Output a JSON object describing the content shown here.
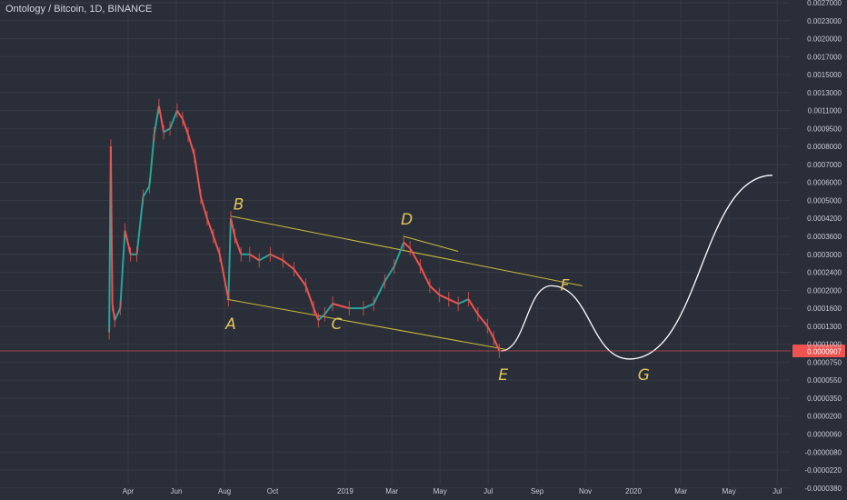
{
  "symbol": {
    "label": "Ontology / Bitcoin, 1D, BINANCE"
  },
  "colors": {
    "background": "#2a2e39",
    "grid": "#363a45",
    "text": "#d1d4dc",
    "axis_text": "#c8ccd6",
    "candle_up": "#26a69a",
    "candle_down": "#ef5350",
    "channel_line": "#c9bd3a",
    "wave_label": "#e3c55b",
    "projection": "#ffffff",
    "current_price": "#ef5350"
  },
  "chart_data": {
    "type": "candlestick",
    "title": "Ontology / Bitcoin, 1D, BINANCE",
    "y_scale": "log (shifted)",
    "grid": true,
    "x_ticks": [
      "Apr",
      "Jun",
      "Aug",
      "Oct",
      "2019",
      "Mar",
      "May",
      "Jul",
      "Sep",
      "Nov",
      "2020",
      "Mar",
      "May",
      "Jul"
    ],
    "y_ticks": [
      "0.0027000",
      "0.0023000",
      "0.0020000",
      "0.0017000",
      "0.0015000",
      "0.0013000",
      "0.0011000",
      "0.0009500",
      "0.0008000",
      "0.0007000",
      "0.0006000",
      "0.0005000",
      "0.0004200",
      "0.0003600",
      "0.0003000",
      "0.0002400",
      "0.0002000",
      "0.0001600",
      "0.0001300",
      "0.0001000",
      "0.0000750",
      "0.0000550",
      "0.0000350",
      "0.0000200",
      "0.0000060",
      "-0.0000080",
      "-0.0000220",
      "-0.0000380"
    ],
    "current_price": "0.0000907",
    "price_path": [
      {
        "date": "2018-03-08",
        "price": 0.00012
      },
      {
        "date": "2018-03-10",
        "price": 0.0008
      },
      {
        "date": "2018-03-12",
        "price": 0.00017
      },
      {
        "date": "2018-03-15",
        "price": 0.00014
      },
      {
        "date": "2018-03-22",
        "price": 0.00016
      },
      {
        "date": "2018-03-28",
        "price": 0.00038
      },
      {
        "date": "2018-04-04",
        "price": 0.0003
      },
      {
        "date": "2018-04-12",
        "price": 0.0003
      },
      {
        "date": "2018-04-20",
        "price": 0.00052
      },
      {
        "date": "2018-04-28",
        "price": 0.00058
      },
      {
        "date": "2018-05-04",
        "price": 0.0009
      },
      {
        "date": "2018-05-10",
        "price": 0.00115
      },
      {
        "date": "2018-05-16",
        "price": 0.00092
      },
      {
        "date": "2018-05-24",
        "price": 0.00095
      },
      {
        "date": "2018-06-02",
        "price": 0.0011
      },
      {
        "date": "2018-06-09",
        "price": 0.00103
      },
      {
        "date": "2018-06-16",
        "price": 0.0009
      },
      {
        "date": "2018-06-24",
        "price": 0.00075
      },
      {
        "date": "2018-07-02",
        "price": 0.00052
      },
      {
        "date": "2018-07-10",
        "price": 0.00042
      },
      {
        "date": "2018-07-18",
        "price": 0.00036
      },
      {
        "date": "2018-07-26",
        "price": 0.0003
      },
      {
        "date": "2018-08-06",
        "price": 0.00018
      },
      {
        "date": "2018-08-09",
        "price": 0.00042
      },
      {
        "date": "2018-08-14",
        "price": 0.00036
      },
      {
        "date": "2018-08-22",
        "price": 0.0003
      },
      {
        "date": "2018-09-02",
        "price": 0.0003
      },
      {
        "date": "2018-09-14",
        "price": 0.00028
      },
      {
        "date": "2018-09-28",
        "price": 0.0003
      },
      {
        "date": "2018-10-14",
        "price": 0.00028
      },
      {
        "date": "2018-10-28",
        "price": 0.00025
      },
      {
        "date": "2018-11-12",
        "price": 0.00021
      },
      {
        "date": "2018-11-22",
        "price": 0.00016
      },
      {
        "date": "2018-11-28",
        "price": 0.00014
      },
      {
        "date": "2018-12-06",
        "price": 0.00015
      },
      {
        "date": "2018-12-16",
        "price": 0.00017
      },
      {
        "date": "2019-01-06",
        "price": 0.00016
      },
      {
        "date": "2019-01-24",
        "price": 0.00016
      },
      {
        "date": "2019-02-06",
        "price": 0.00017
      },
      {
        "date": "2019-02-20",
        "price": 0.00022
      },
      {
        "date": "2019-03-04",
        "price": 0.00026
      },
      {
        "date": "2019-03-16",
        "price": 0.00034
      },
      {
        "date": "2019-03-24",
        "price": 0.00032
      },
      {
        "date": "2019-04-06",
        "price": 0.00026
      },
      {
        "date": "2019-04-18",
        "price": 0.00021
      },
      {
        "date": "2019-04-30",
        "price": 0.00019
      },
      {
        "date": "2019-05-12",
        "price": 0.00018
      },
      {
        "date": "2019-05-24",
        "price": 0.00017
      },
      {
        "date": "2019-06-06",
        "price": 0.00018
      },
      {
        "date": "2019-06-18",
        "price": 0.00015
      },
      {
        "date": "2019-06-30",
        "price": 0.00013
      },
      {
        "date": "2019-07-08",
        "price": 0.00011
      },
      {
        "date": "2019-07-15",
        "price": 9.07e-05
      }
    ],
    "channel_lines": [
      {
        "name": "upper",
        "from": {
          "date": "2018-08-09",
          "price": 0.00043
        },
        "to": {
          "date": "2019-10-28",
          "price": 0.00021
        }
      },
      {
        "name": "lower",
        "from": {
          "date": "2018-08-04",
          "price": 0.00018
        },
        "to": {
          "date": "2019-07-22",
          "price": 9.3e-05
        }
      },
      {
        "name": "D-line",
        "from": {
          "date": "2019-03-16",
          "price": 0.00036
        },
        "to": {
          "date": "2019-05-24",
          "price": 0.00031
        }
      }
    ],
    "wave_labels": [
      {
        "label": "A",
        "date": "2018-08-09",
        "price": 0.000125
      },
      {
        "label": "B",
        "date": "2018-08-19",
        "price": 0.00046
      },
      {
        "label": "C",
        "date": "2018-12-21",
        "price": 0.000125
      },
      {
        "label": "D",
        "date": "2019-03-20",
        "price": 0.0004
      },
      {
        "label": "E",
        "date": "2019-07-20",
        "price": 5.5e-05
      },
      {
        "label": "F",
        "date": "2019-10-06",
        "price": 0.0002
      },
      {
        "label": "G",
        "date": "2020-01-14",
        "price": 5.5e-05
      }
    ],
    "projection": [
      {
        "date": "2019-07-17",
        "price": 9.07e-05
      },
      {
        "date": "2019-09-19",
        "price": 0.00021
      },
      {
        "date": "2019-12-27",
        "price": 7.94e-05
      },
      {
        "date": "2020-06-25",
        "price": 0.00064
      }
    ]
  }
}
